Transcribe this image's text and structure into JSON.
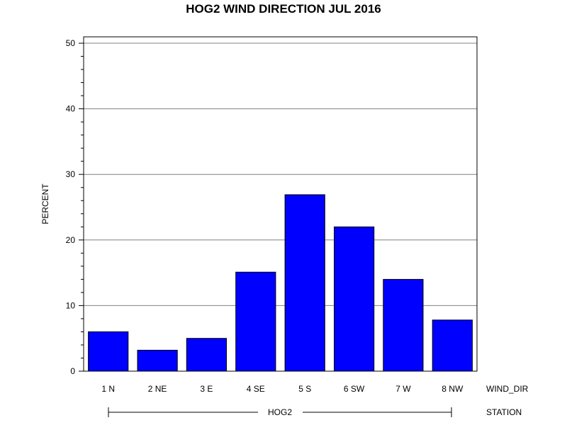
{
  "chart_data": {
    "type": "bar",
    "title": "HOG2 WIND DIRECTION JUL 2016",
    "ylabel": "PERCENT",
    "xlabel": "WIND_DIR",
    "group_axis_label": "STATION",
    "group_label": "HOG2",
    "categories": [
      "1 N",
      "2 NE",
      "3 E",
      "4 SE",
      "5 S",
      "6 SW",
      "7 W",
      "8 NW"
    ],
    "values": [
      6.0,
      3.2,
      5.0,
      15.1,
      26.9,
      22.0,
      14.0,
      7.8
    ],
    "ylim": [
      0,
      50
    ],
    "yticks": [
      "0",
      "10",
      "20",
      "30",
      "40",
      "50"
    ],
    "grid": true,
    "colors": {
      "bar": "#0000ff",
      "bar_outline": "#000000",
      "grid": "#808080"
    }
  }
}
